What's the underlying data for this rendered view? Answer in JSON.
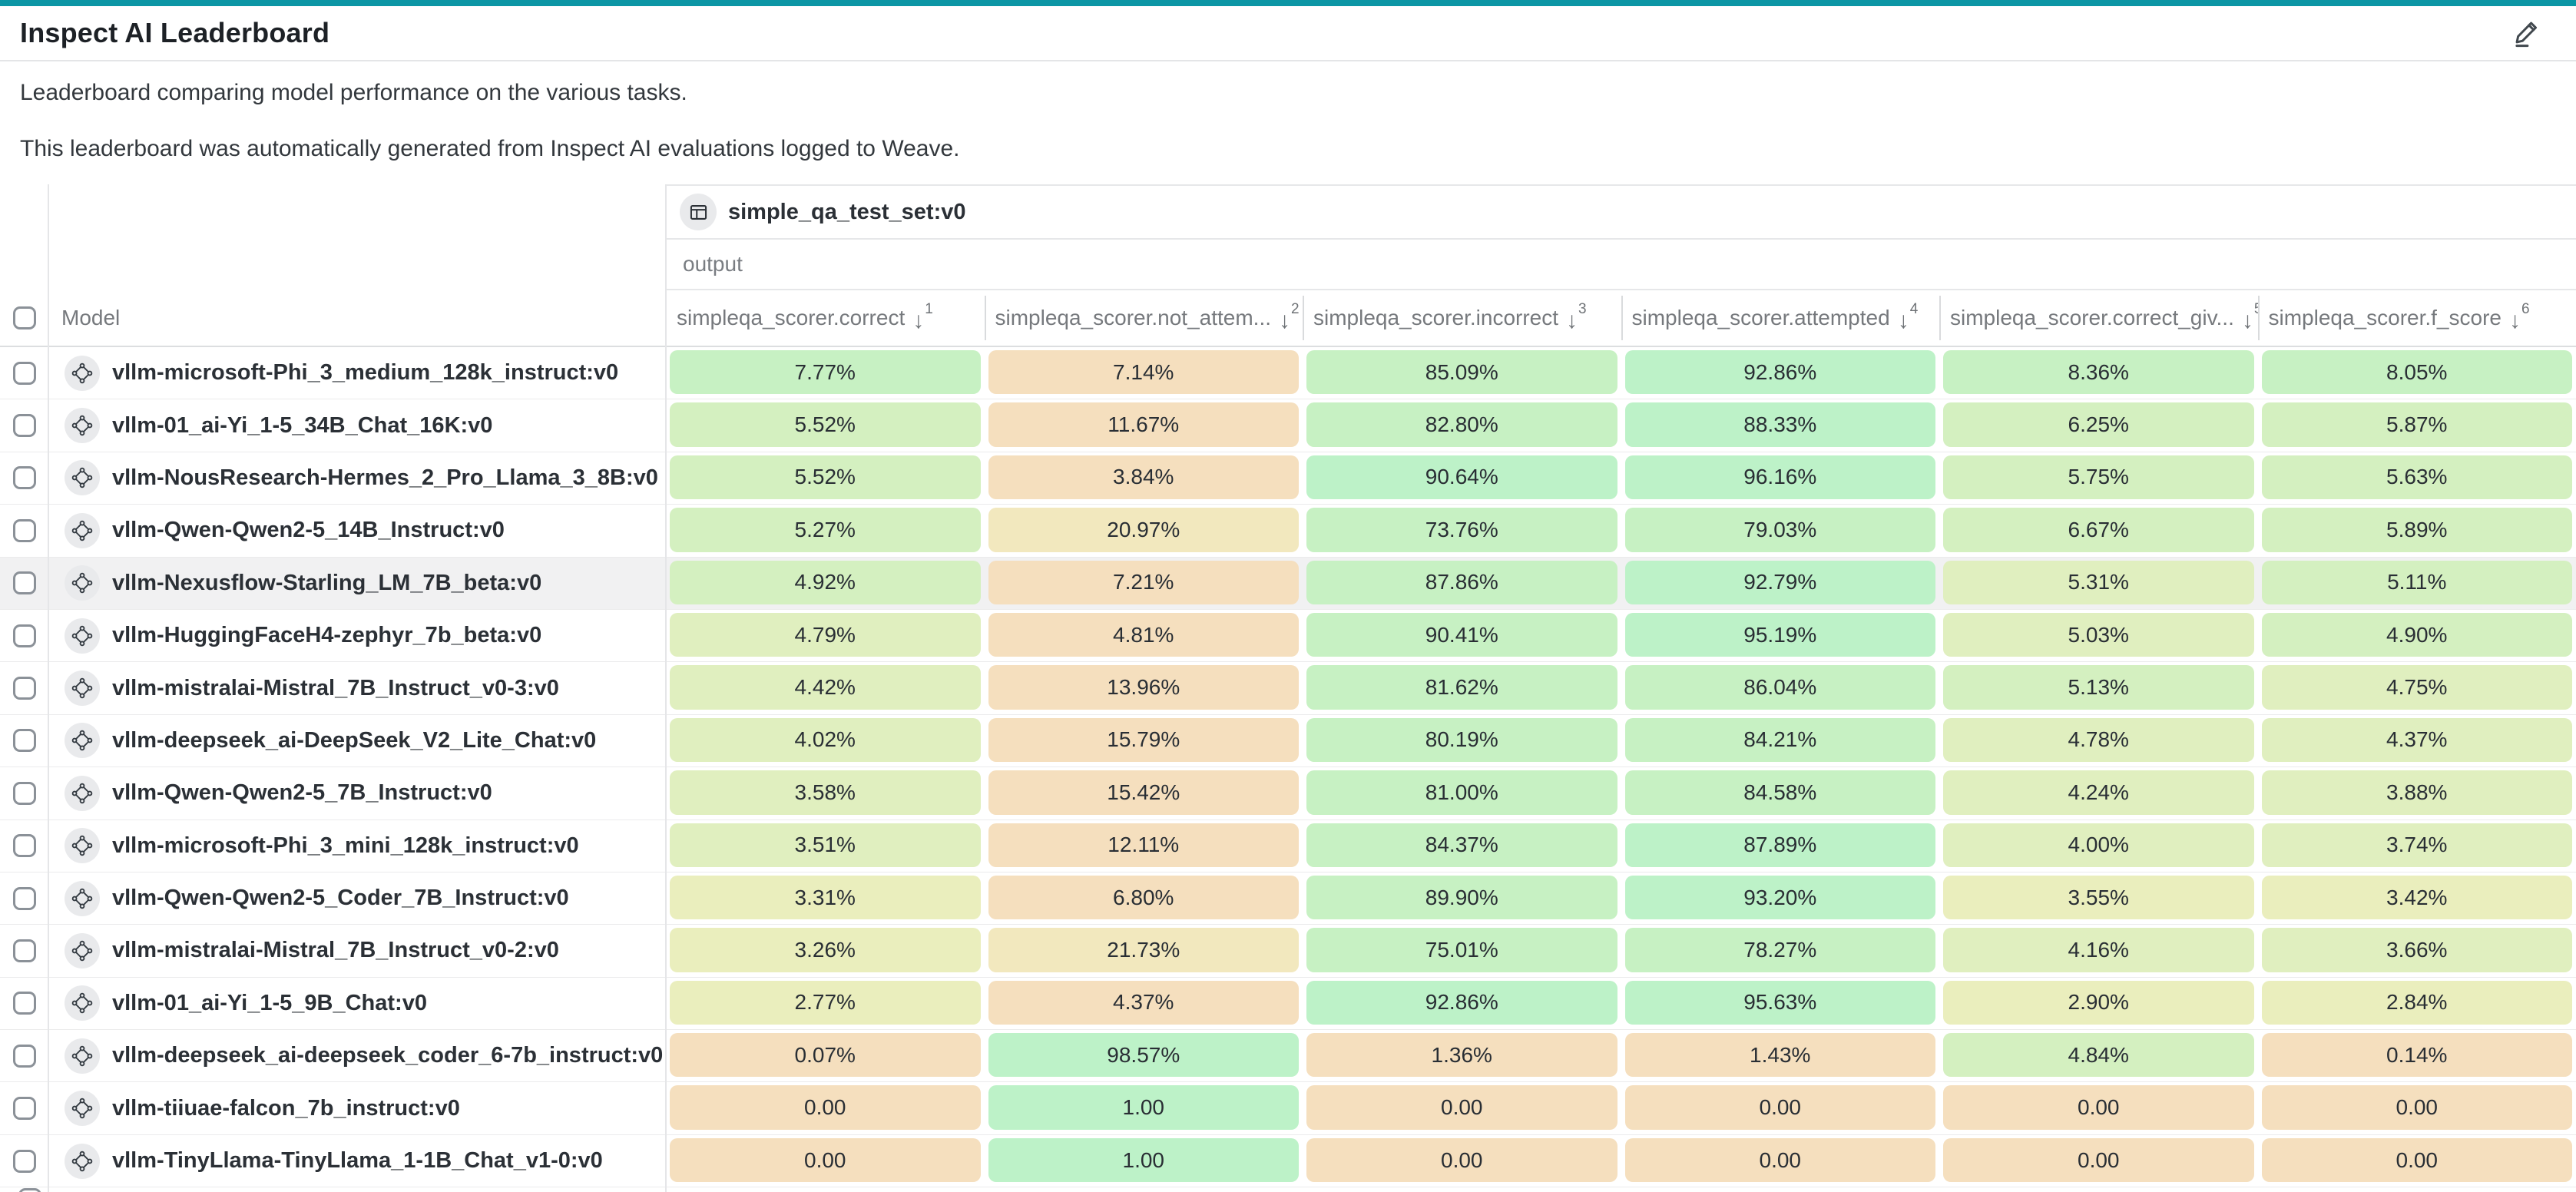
{
  "accent_color": "#0C96A5",
  "page": {
    "title": "Inspect AI Leaderboard",
    "description": [
      "Leaderboard comparing model performance on the various tasks.",
      "This leaderboard was automatically generated from Inspect AI evaluations logged to Weave."
    ]
  },
  "table": {
    "dataset_group_label": "simple_qa_test_set:v0",
    "output_label": "output",
    "model_column_label": "Model",
    "columns": [
      {
        "label": "simpleqa_scorer.correct",
        "sort_rank": "1"
      },
      {
        "label": "simpleqa_scorer.not_attem...",
        "sort_rank": "2"
      },
      {
        "label": "simpleqa_scorer.incorrect",
        "sort_rank": "3"
      },
      {
        "label": "simpleqa_scorer.attempted",
        "sort_rank": "4"
      },
      {
        "label": "simpleqa_scorer.correct_giv...",
        "sort_rank": "5"
      },
      {
        "label": "simpleqa_scorer.f_score",
        "sort_rank": "6"
      }
    ],
    "palette": {
      "g1": "#BDF2C8",
      "g2": "#C7F1C3",
      "g3": "#D4F0C0",
      "g4": "#E0EFBF",
      "g5": "#EAEEBD",
      "y": "#F2E8BE",
      "t": "#F5DFBE"
    },
    "rows": [
      {
        "model": "vllm-microsoft-Phi_3_medium_128k_instruct:v0",
        "highlighted": false,
        "values": [
          "7.77%",
          "7.14%",
          "85.09%",
          "92.86%",
          "8.36%",
          "8.05%"
        ],
        "tones": [
          "g2",
          "t",
          "g2",
          "g1",
          "g2",
          "g2"
        ]
      },
      {
        "model": "vllm-01_ai-Yi_1-5_34B_Chat_16K:v0",
        "highlighted": false,
        "values": [
          "5.52%",
          "11.67%",
          "82.80%",
          "88.33%",
          "6.25%",
          "5.87%"
        ],
        "tones": [
          "g3",
          "t",
          "g2",
          "g1",
          "g3",
          "g3"
        ]
      },
      {
        "model": "vllm-NousResearch-Hermes_2_Pro_Llama_3_8B:v0",
        "highlighted": false,
        "values": [
          "5.52%",
          "3.84%",
          "90.64%",
          "96.16%",
          "5.75%",
          "5.63%"
        ],
        "tones": [
          "g3",
          "t",
          "g1",
          "g1",
          "g3",
          "g3"
        ]
      },
      {
        "model": "vllm-Qwen-Qwen2-5_14B_Instruct:v0",
        "highlighted": false,
        "values": [
          "5.27%",
          "20.97%",
          "73.76%",
          "79.03%",
          "6.67%",
          "5.89%"
        ],
        "tones": [
          "g3",
          "y",
          "g2",
          "g2",
          "g3",
          "g3"
        ]
      },
      {
        "model": "vllm-Nexusflow-Starling_LM_7B_beta:v0",
        "highlighted": true,
        "values": [
          "4.92%",
          "7.21%",
          "87.86%",
          "92.79%",
          "5.31%",
          "5.11%"
        ],
        "tones": [
          "g3",
          "t",
          "g2",
          "g1",
          "g4",
          "g3"
        ]
      },
      {
        "model": "vllm-HuggingFaceH4-zephyr_7b_beta:v0",
        "highlighted": false,
        "values": [
          "4.79%",
          "4.81%",
          "90.41%",
          "95.19%",
          "5.03%",
          "4.90%"
        ],
        "tones": [
          "g4",
          "t",
          "g2",
          "g1",
          "g4",
          "g3"
        ]
      },
      {
        "model": "vllm-mistralai-Mistral_7B_Instruct_v0-3:v0",
        "highlighted": false,
        "values": [
          "4.42%",
          "13.96%",
          "81.62%",
          "86.04%",
          "5.13%",
          "4.75%"
        ],
        "tones": [
          "g4",
          "t",
          "g2",
          "g2",
          "g3",
          "g4"
        ]
      },
      {
        "model": "vllm-deepseek_ai-DeepSeek_V2_Lite_Chat:v0",
        "highlighted": false,
        "values": [
          "4.02%",
          "15.79%",
          "80.19%",
          "84.21%",
          "4.78%",
          "4.37%"
        ],
        "tones": [
          "g4",
          "t",
          "g2",
          "g2",
          "g4",
          "g4"
        ]
      },
      {
        "model": "vllm-Qwen-Qwen2-5_7B_Instruct:v0",
        "highlighted": false,
        "values": [
          "3.58%",
          "15.42%",
          "81.00%",
          "84.58%",
          "4.24%",
          "3.88%"
        ],
        "tones": [
          "g4",
          "t",
          "g2",
          "g2",
          "g4",
          "g4"
        ]
      },
      {
        "model": "vllm-microsoft-Phi_3_mini_128k_instruct:v0",
        "highlighted": false,
        "values": [
          "3.51%",
          "12.11%",
          "84.37%",
          "87.89%",
          "4.00%",
          "3.74%"
        ],
        "tones": [
          "g4",
          "t",
          "g2",
          "g1",
          "g4",
          "g4"
        ]
      },
      {
        "model": "vllm-Qwen-Qwen2-5_Coder_7B_Instruct:v0",
        "highlighted": false,
        "values": [
          "3.31%",
          "6.80%",
          "89.90%",
          "93.20%",
          "3.55%",
          "3.42%"
        ],
        "tones": [
          "g5",
          "t",
          "g2",
          "g1",
          "g5",
          "g5"
        ]
      },
      {
        "model": "vllm-mistralai-Mistral_7B_Instruct_v0-2:v0",
        "highlighted": false,
        "values": [
          "3.26%",
          "21.73%",
          "75.01%",
          "78.27%",
          "4.16%",
          "3.66%"
        ],
        "tones": [
          "g5",
          "y",
          "g2",
          "g2",
          "g4",
          "g4"
        ]
      },
      {
        "model": "vllm-01_ai-Yi_1-5_9B_Chat:v0",
        "highlighted": false,
        "values": [
          "2.77%",
          "4.37%",
          "92.86%",
          "95.63%",
          "2.90%",
          "2.84%"
        ],
        "tones": [
          "g5",
          "t",
          "g1",
          "g1",
          "g5",
          "g5"
        ]
      },
      {
        "model": "vllm-deepseek_ai-deepseek_coder_6-7b_instruct:v0",
        "highlighted": false,
        "values": [
          "0.07%",
          "98.57%",
          "1.36%",
          "1.43%",
          "4.84%",
          "0.14%"
        ],
        "tones": [
          "t",
          "g1",
          "t",
          "t",
          "g3",
          "t"
        ]
      },
      {
        "model": "vllm-tiiuae-falcon_7b_instruct:v0",
        "highlighted": false,
        "values": [
          "0.00",
          "1.00",
          "0.00",
          "0.00",
          "0.00",
          "0.00"
        ],
        "tones": [
          "t",
          "g1",
          "t",
          "t",
          "t",
          "t"
        ]
      },
      {
        "model": "vllm-TinyLlama-TinyLlama_1-1B_Chat_v1-0:v0",
        "highlighted": false,
        "values": [
          "0.00",
          "1.00",
          "0.00",
          "0.00",
          "0.00",
          "0.00"
        ],
        "tones": [
          "t",
          "g1",
          "t",
          "t",
          "t",
          "t"
        ]
      }
    ]
  }
}
